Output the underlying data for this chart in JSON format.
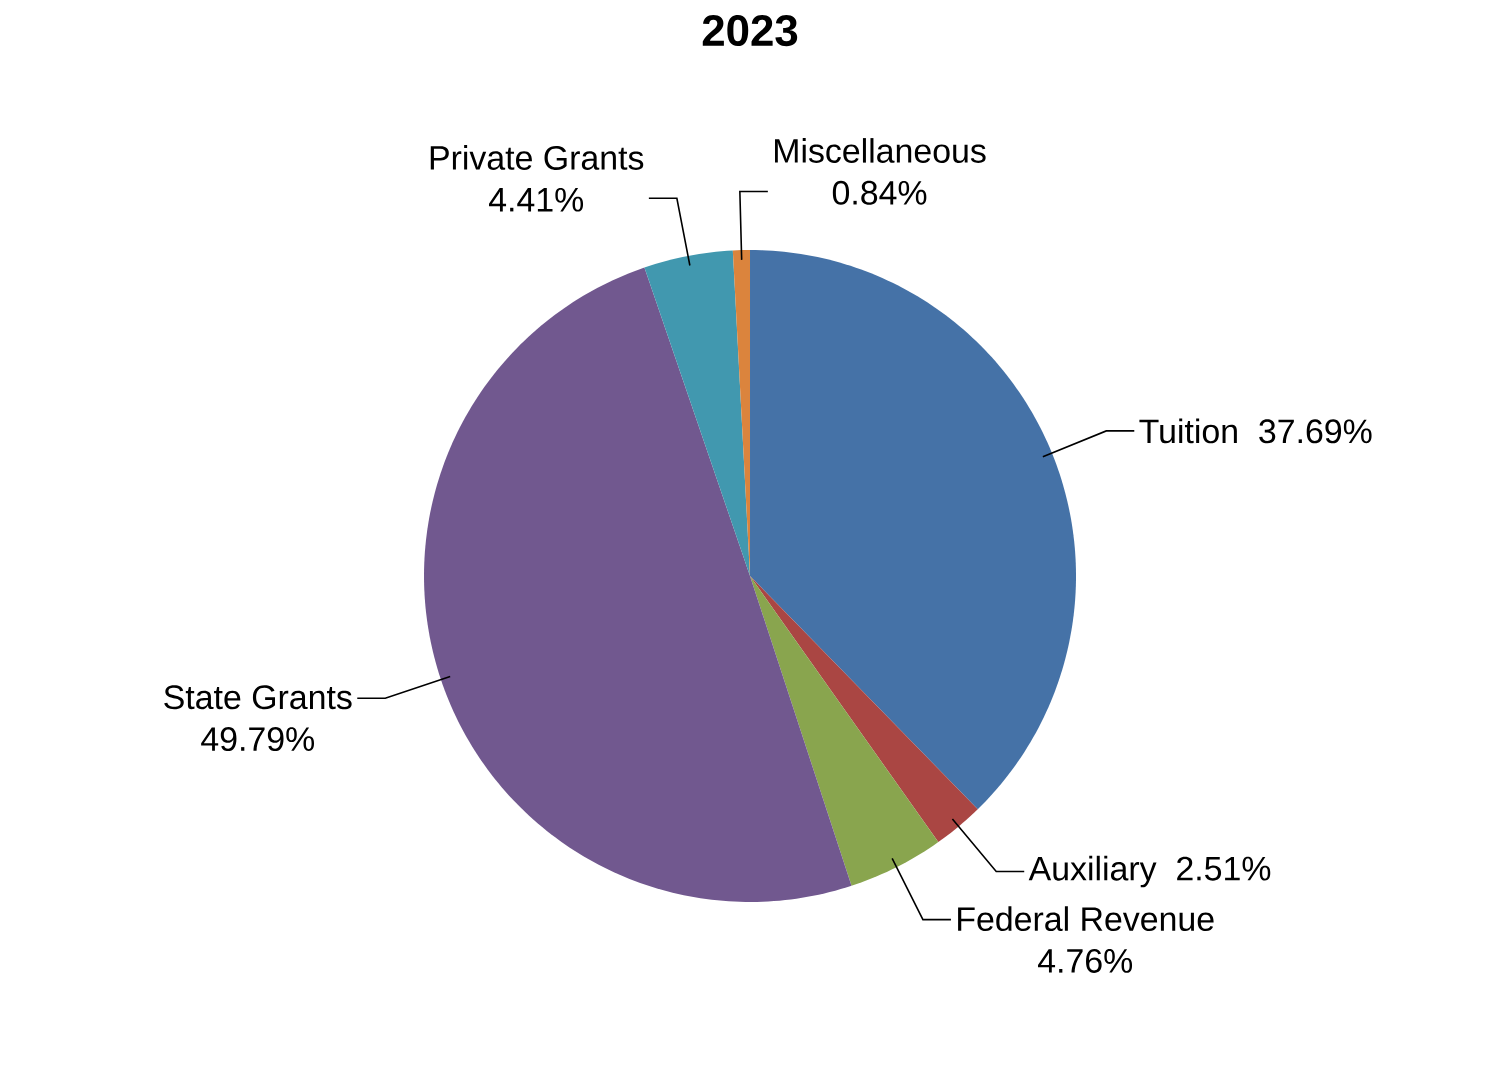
{
  "chart_data": {
    "type": "pie",
    "title": "2023",
    "categories": [
      "Tuition",
      "Auxiliary",
      "Federal Revenue",
      "State Grants",
      "Private Grants",
      "Miscellaneous"
    ],
    "values": [
      37.69,
      2.51,
      4.76,
      49.79,
      4.41,
      0.84
    ],
    "value_labels": [
      "37.69%",
      "2.51%",
      "4.76%",
      "49.79%",
      "4.41%",
      "0.84%"
    ],
    "colors": [
      "#4572a7",
      "#aa4643",
      "#89a54e",
      "#71588f",
      "#4198af",
      "#db843d"
    ],
    "legend": false
  }
}
